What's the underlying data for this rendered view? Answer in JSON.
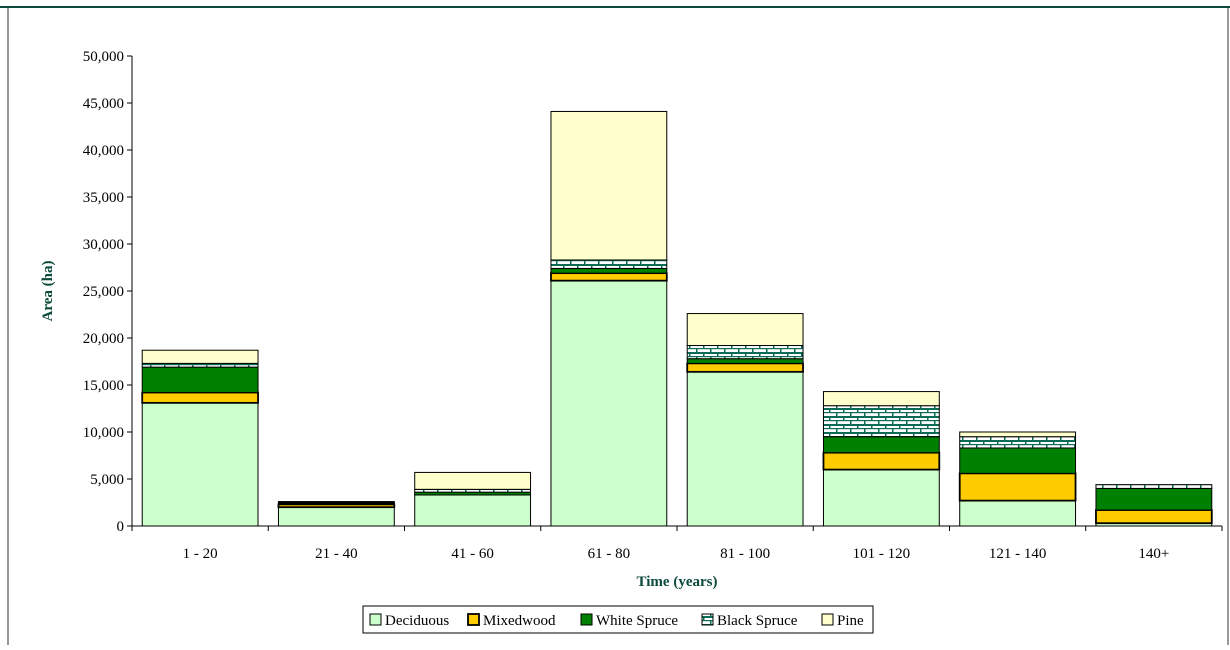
{
  "chart_data": {
    "type": "bar",
    "stacked": true,
    "categories": [
      "1 - 20",
      "21 - 40",
      "41 - 60",
      "61 - 80",
      "81 - 100",
      "101 - 120",
      "121 - 140",
      "140+"
    ],
    "series": [
      {
        "name": "Deciduous",
        "values": [
          13100,
          2000,
          3300,
          26100,
          16400,
          6000,
          2700,
          300
        ],
        "color": "#ccffcc",
        "pattern": "solid"
      },
      {
        "name": "Mixedwood",
        "values": [
          1100,
          300,
          0,
          800,
          900,
          1800,
          2900,
          1400
        ],
        "color": "#ffcc00",
        "pattern": "solid"
      },
      {
        "name": "White Spruce",
        "values": [
          2700,
          100,
          300,
          500,
          500,
          1700,
          2700,
          2300
        ],
        "color": "#008000",
        "pattern": "solid"
      },
      {
        "name": "Black Spruce",
        "values": [
          400,
          100,
          300,
          900,
          1400,
          3300,
          1200,
          400
        ],
        "color": "#ffffff",
        "pattern": "brick-teal"
      },
      {
        "name": "Pine",
        "values": [
          1400,
          100,
          1800,
          15800,
          3400,
          1500,
          500,
          0
        ],
        "color": "#ffffcc",
        "pattern": "solid"
      }
    ],
    "xlabel": "Time (years)",
    "ylabel": "Area (ha)",
    "ylim": [
      0,
      50000
    ],
    "ytick_step": 5000,
    "yticks": [
      "0",
      "5,000",
      "10,000",
      "15,000",
      "20,000",
      "25,000",
      "30,000",
      "35,000",
      "40,000",
      "45,000",
      "50,000"
    ],
    "grid": false,
    "legend_position": "bottom",
    "frame_color": "#0b4a3b",
    "outline_color": "#000000"
  }
}
